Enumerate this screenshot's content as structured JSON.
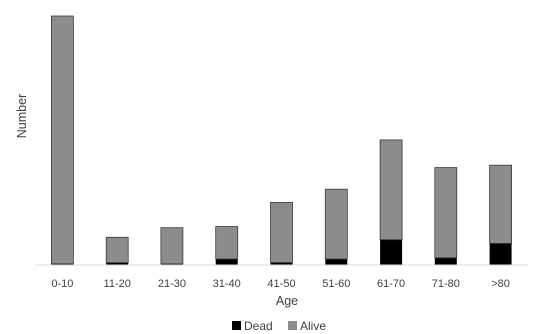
{
  "chart_data": {
    "type": "bar",
    "stacked": true,
    "title": "",
    "xlabel": "Age",
    "ylabel": "Number",
    "categories": [
      "0-10",
      "11-20",
      "21-30",
      "31-40",
      "41-50",
      "51-60",
      "61-70",
      "71-80",
      ">80"
    ],
    "series": [
      {
        "name": "Dead",
        "color": "#000000",
        "values": [
          1,
          2,
          1,
          5,
          2,
          5,
          21,
          6,
          18
        ]
      },
      {
        "name": "Alive",
        "color": "#8c8c8c",
        "values": [
          206,
          21,
          30,
          27,
          50,
          58,
          83,
          75,
          65
        ]
      }
    ],
    "ylim": [
      0,
      207
    ],
    "y_axis_visible": false,
    "grid": false,
    "legend": {
      "position": "bottom"
    }
  }
}
